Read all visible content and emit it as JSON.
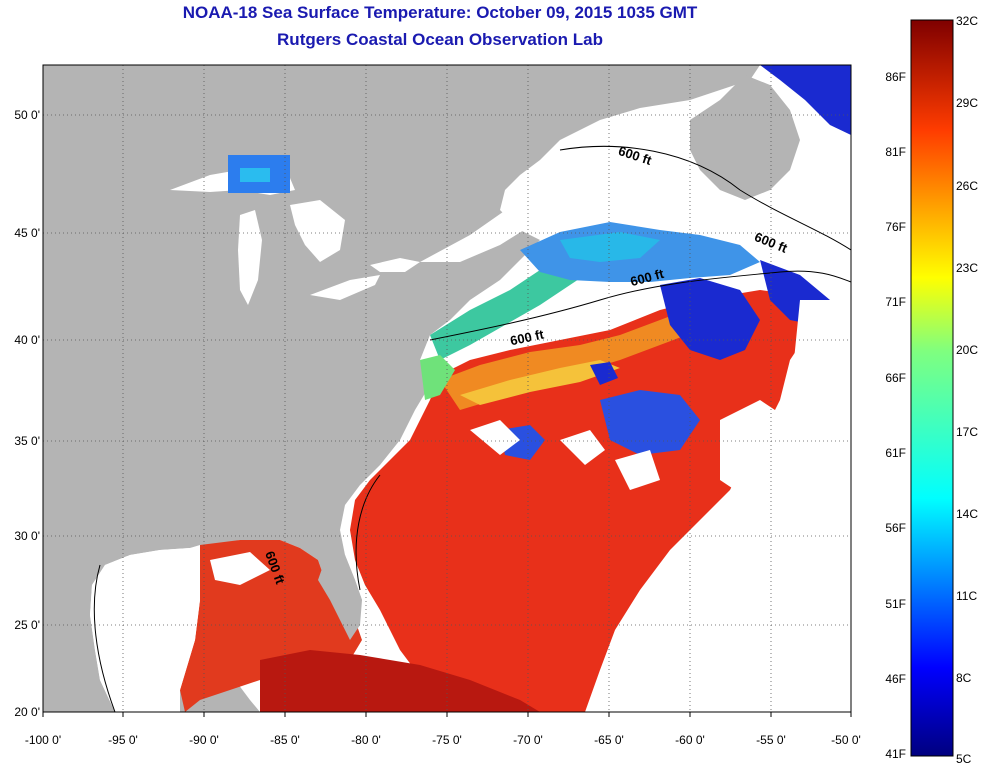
{
  "title": {
    "line1": "NOAA-18 Sea Surface Temperature:  October 09, 2015 1035 GMT",
    "line2": "Rutgers Coastal Ocean Observation Lab"
  },
  "axes": {
    "lat_ticks": [
      "50 0'",
      "45 0'",
      "40 0'",
      "35 0'",
      "30 0'",
      "25 0'",
      "20 0'"
    ],
    "lon_ticks": [
      "-100 0'",
      "-95 0'",
      "-90 0'",
      "-85 0'",
      "-80 0'",
      "-75 0'",
      "-70 0'",
      "-65 0'",
      "-60 0'",
      "-55 0'",
      "-50 0'"
    ]
  },
  "colorbar": {
    "fahrenheit": [
      "86F",
      "81F",
      "76F",
      "71F",
      "66F",
      "61F",
      "56F",
      "51F",
      "46F",
      "41F"
    ],
    "celsius": [
      "32C",
      "29C",
      "26C",
      "23C",
      "20C",
      "17C",
      "14C",
      "11C",
      "8C",
      "5C"
    ]
  },
  "contours": {
    "label": "600 ft",
    "labels": [
      "600 ft",
      "600 ft",
      "600 ft",
      "600 ft",
      "600 ft"
    ]
  },
  "colors": {
    "title": "#1a1ab0",
    "land": "#b4b4b4",
    "cloud": "#ffffff",
    "warm": "#e8301a",
    "cool": "#1a2ad0"
  }
}
